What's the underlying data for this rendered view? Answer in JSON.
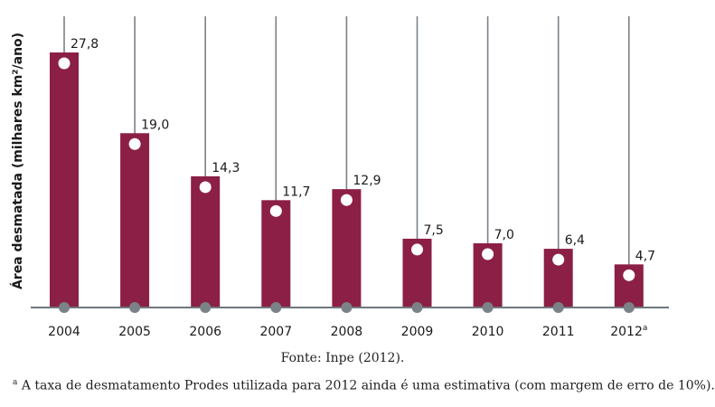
{
  "chart_data": {
    "type": "bar",
    "ylabel": "Área desmatada (milhares km²/ano)",
    "categories": [
      "2004",
      "2005",
      "2006",
      "2007",
      "2008",
      "2009",
      "2010",
      "2011",
      "2012"
    ],
    "category_superscripts": [
      "",
      "",
      "",
      "",
      "",
      "",
      "",
      "",
      "a"
    ],
    "values": [
      27.8,
      19.0,
      14.3,
      11.7,
      12.9,
      7.5,
      7.0,
      6.4,
      4.7
    ],
    "value_labels": [
      "27,8",
      "19,0",
      "14,3",
      "11,7",
      "12,9",
      "7,5",
      "7,0",
      "6,4",
      "4,7"
    ],
    "ylim": [
      0,
      28.9
    ],
    "grid": false,
    "colors": {
      "bar": "#8b1f45",
      "stem": "#7a8288",
      "marker": "#ffffff",
      "axis": "#6f777c"
    }
  },
  "source": "Fonte: Inpe (2012).",
  "footnote": {
    "marker": "a",
    "text": " A taxa de desmatamento Prodes utilizada para 2012 ainda é uma estimativa (com margem de erro de 10%)."
  }
}
